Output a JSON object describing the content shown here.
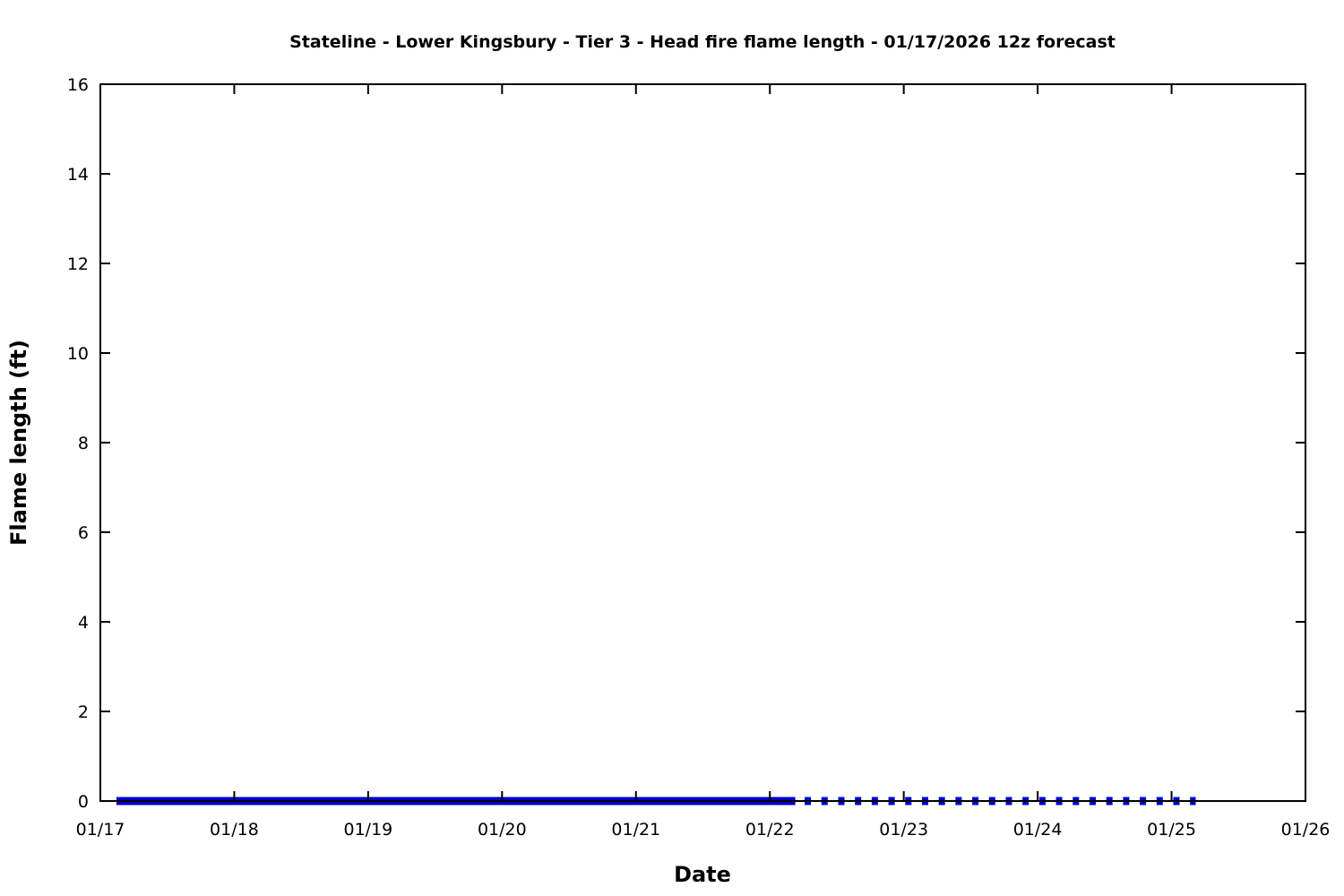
{
  "chart_data": {
    "type": "line",
    "title": "Stateline - Lower Kingsbury - Tier 3 - Head fire flame length - 01/17/2026 12z forecast",
    "xlabel": "Date",
    "ylabel": "Flame length (ft)",
    "x_tick_labels": [
      "01/17",
      "01/18",
      "01/19",
      "01/20",
      "01/21",
      "01/22",
      "01/23",
      "01/24",
      "01/25",
      "01/26"
    ],
    "x_ticks_days": [
      0,
      1,
      2,
      3,
      4,
      5,
      6,
      7,
      8,
      9
    ],
    "x_range_days": [
      0,
      9
    ],
    "ylim": [
      0,
      16
    ],
    "y_ticks": [
      0,
      2,
      4,
      6,
      8,
      10,
      12,
      14,
      16
    ],
    "grid": false,
    "legend": "none",
    "line_color": "#0000cc",
    "axis_color": "#000000",
    "series": [
      {
        "name": "head fire flame length (solid forecast segment)",
        "style": "solid",
        "value_ft": 0,
        "x_start_days": 0.12,
        "x_end_days": 5.19
      },
      {
        "name": "head fire flame length (dashed extended-forecast segment)",
        "style": "dashed",
        "value_ft": 0,
        "x_start_days": 5.26,
        "x_end_days": 8.18
      }
    ]
  }
}
